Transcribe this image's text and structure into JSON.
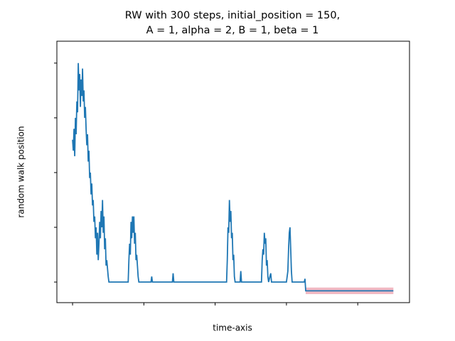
{
  "chart_data": {
    "type": "line",
    "title": [
      "RW with 300 steps, initial_position = 150,",
      "A = 1, alpha = 2, B = 1, beta = 1"
    ],
    "xlabel": "time-axis",
    "ylabel": "random walk position",
    "xlim": [
      -22,
      472.6
    ],
    "ylim": [
      -18.8,
      220
    ],
    "xticks": [
      0,
      100,
      200,
      300,
      400
    ],
    "yticks": [
      0,
      50,
      100,
      150,
      200
    ],
    "series": [
      {
        "color": "#1f77b4",
        "x": [
          0,
          1,
          2,
          3,
          4,
          5,
          6,
          7,
          8,
          9,
          10,
          11,
          12,
          13,
          14,
          15,
          16,
          17,
          18,
          19,
          20,
          21,
          22,
          23,
          24,
          25,
          26,
          27,
          28,
          29,
          30,
          31,
          32,
          33,
          34,
          35,
          36,
          37,
          38,
          39,
          40,
          41,
          42,
          43,
          44,
          45,
          46,
          47,
          48,
          50,
          51,
          60,
          70,
          78,
          79,
          80,
          81,
          82,
          83,
          84,
          85,
          86,
          87,
          88,
          89,
          90,
          92,
          93,
          110,
          111,
          112,
          140,
          141,
          142,
          160,
          180,
          200,
          216,
          217,
          218,
          219,
          220,
          221,
          222,
          223,
          224,
          225,
          226,
          227,
          228,
          235,
          236,
          237,
          265,
          266,
          267,
          268,
          269,
          270,
          271,
          272,
          273,
          274,
          275,
          278,
          279,
          300,
          302,
          303,
          304,
          305,
          306,
          307,
          308,
          325,
          326,
          327,
          450
        ],
        "values": [
          130,
          120,
          140,
          115,
          150,
          135,
          165,
          155,
          200,
          175,
          190,
          160,
          185,
          170,
          195,
          165,
          175,
          150,
          160,
          140,
          125,
          135,
          110,
          120,
          95,
          100,
          80,
          90,
          70,
          75,
          55,
          60,
          40,
          50,
          25,
          45,
          20,
          35,
          55,
          40,
          65,
          50,
          75,
          45,
          60,
          30,
          40,
          15,
          20,
          5,
          0,
          0,
          0,
          0,
          20,
          35,
          25,
          55,
          40,
          60,
          45,
          60,
          35,
          45,
          20,
          25,
          5,
          0,
          0,
          5,
          0,
          0,
          8,
          0,
          0,
          0,
          0,
          0,
          20,
          50,
          45,
          75,
          55,
          65,
          40,
          45,
          20,
          25,
          5,
          0,
          0,
          10,
          0,
          0,
          20,
          30,
          25,
          45,
          35,
          40,
          15,
          20,
          5,
          0,
          8,
          0,
          0,
          10,
          30,
          45,
          50,
          30,
          10,
          0,
          0,
          3,
          -8,
          -8
        ]
      }
    ],
    "band": {
      "x": [
        327,
        450
      ],
      "y": [
        -11,
        -5
      ],
      "color": "#e88b9b"
    }
  }
}
